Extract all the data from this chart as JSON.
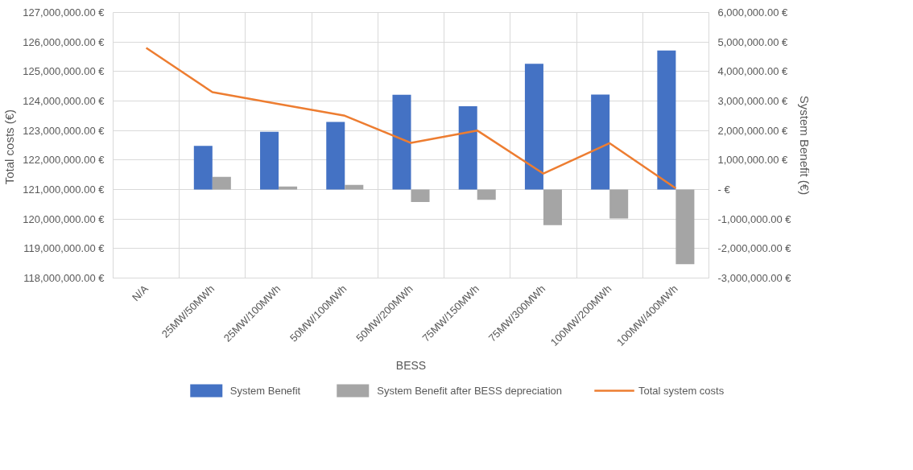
{
  "chart_data": {
    "type": "bar",
    "xlabel": "BESS",
    "ylabel": "Total costs  (€)",
    "y2label": "System Benefit (€)",
    "categories": [
      "N/A",
      "25MW/50MWh",
      "25MW/100MWh",
      "50MW/100MWh",
      "50MW/200MWh",
      "75MW/150MWh",
      "75MW/300MWh",
      "100MW/200MWh",
      "100MW/400MWh"
    ],
    "series": [
      {
        "name": "System Benefit",
        "axis": "y2",
        "color": "#4472c4",
        "values": [
          null,
          1480000,
          1960000,
          2290000,
          3210000,
          2820000,
          4260000,
          3220000,
          4710000
        ]
      },
      {
        "name": "System Benefit after BESS depreciation",
        "axis": "y2",
        "color": "#a5a5a5",
        "values": [
          null,
          430000,
          100000,
          160000,
          -420000,
          -350000,
          -1210000,
          -980000,
          -2530000
        ]
      },
      {
        "name": "Total system costs",
        "type": "line",
        "color": "#ed7d31",
        "values": [
          125800000,
          124300000,
          123900000,
          123500000,
          122580000,
          123000000,
          121540000,
          122570000,
          121040000
        ]
      }
    ],
    "ylim": [
      118000000,
      127000000
    ],
    "yticks": [
      {
        "value": 118000000,
        "label": "118,000,000.00 €"
      },
      {
        "value": 119000000,
        "label": "119,000,000.00 €"
      },
      {
        "value": 120000000,
        "label": "120,000,000.00 €"
      },
      {
        "value": 121000000,
        "label": "121,000,000.00 €"
      },
      {
        "value": 122000000,
        "label": "122,000,000.00 €"
      },
      {
        "value": 123000000,
        "label": "123,000,000.00 €"
      },
      {
        "value": 124000000,
        "label": "124,000,000.00 €"
      },
      {
        "value": 125000000,
        "label": "125,000,000.00 €"
      },
      {
        "value": 126000000,
        "label": "126,000,000.00 €"
      },
      {
        "value": 127000000,
        "label": "127,000,000.00 €"
      }
    ],
    "y2lim": [
      -3000000,
      6000000
    ],
    "y2ticks": [
      {
        "value": -3000000,
        "label": "-3,000,000.00 €"
      },
      {
        "value": -2000000,
        "label": "-2,000,000.00 €"
      },
      {
        "value": -1000000,
        "label": "-1,000,000.00 €"
      },
      {
        "value": 0,
        "label": "-   €"
      },
      {
        "value": 1000000,
        "label": "1,000,000.00 €"
      },
      {
        "value": 2000000,
        "label": "2,000,000.00 €"
      },
      {
        "value": 3000000,
        "label": "3,000,000.00 €"
      },
      {
        "value": 4000000,
        "label": "4,000,000.00 €"
      },
      {
        "value": 5000000,
        "label": "5,000,000.00 €"
      },
      {
        "value": 6000000,
        "label": "6,000,000.00 €"
      }
    ],
    "grid": true,
    "legend": "bottom"
  }
}
